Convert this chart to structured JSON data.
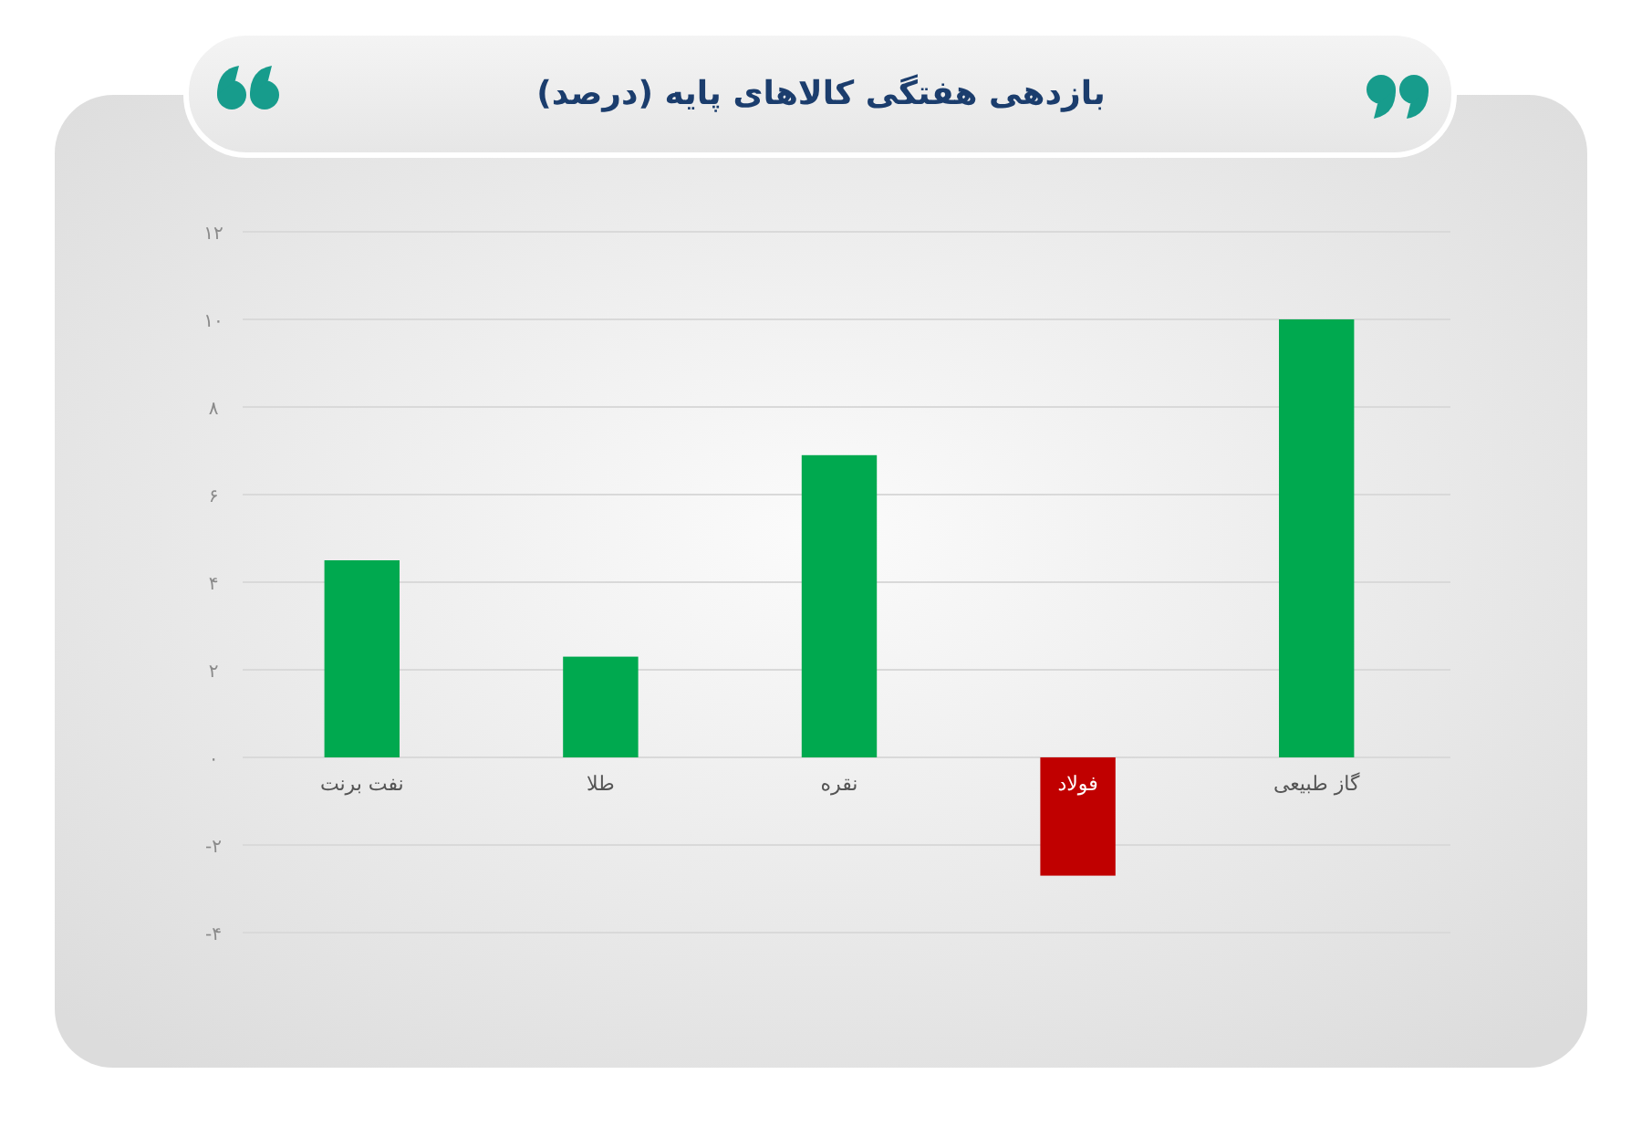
{
  "chart_data": {
    "type": "bar",
    "title": "بازدهی هفتگی کالاهای پایه (درصد)",
    "categories": [
      "نفت برنت",
      "طلا",
      "نقره",
      "فولاد",
      "گاز طبیعی"
    ],
    "values": [
      4.5,
      2.3,
      6.9,
      -2.7,
      10
    ],
    "colors": [
      "#00a94f",
      "#00a94f",
      "#00a94f",
      "#c00000",
      "#00a94f"
    ],
    "ylim": [
      -4,
      12
    ],
    "yticks": [
      {
        "value": -4,
        "label": "-۴"
      },
      {
        "value": -2,
        "label": "-۲"
      },
      {
        "value": 0,
        "label": "۰"
      },
      {
        "value": 2,
        "label": "۲"
      },
      {
        "value": 4,
        "label": "۴"
      },
      {
        "value": 6,
        "label": "۶"
      },
      {
        "value": 8,
        "label": "۸"
      },
      {
        "value": 10,
        "label": "۱۰"
      },
      {
        "value": 12,
        "label": "۱۲"
      }
    ],
    "grid": "y"
  }
}
